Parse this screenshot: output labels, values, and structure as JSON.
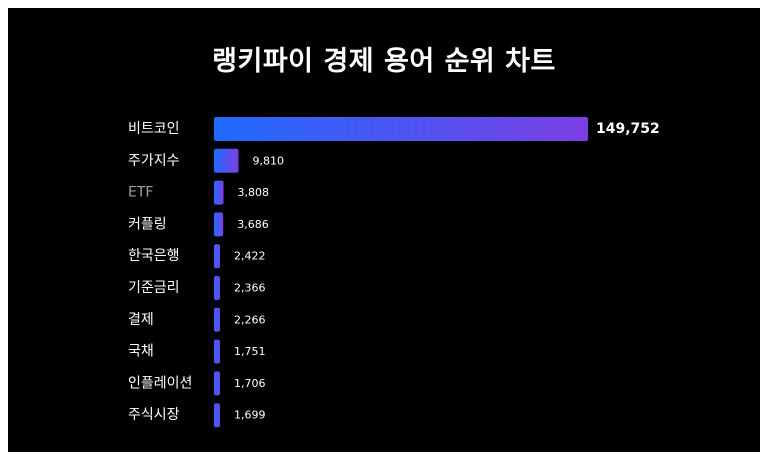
{
  "title": "랭키파이 경제 용어 순위 차트",
  "colors": {
    "background": "#000000",
    "text": "#ffffff",
    "bar_start": "#1f6bff",
    "bar_end": "#7b3fe4",
    "etf_label": "#a0a0a0"
  },
  "chart_data": {
    "type": "bar",
    "orientation": "horizontal",
    "title": "랭키파이 경제 용어 순위 차트",
    "categories": [
      "비트코인",
      "주가지수",
      "ETF",
      "커플링",
      "한국은행",
      "기준금리",
      "결제",
      "국채",
      "인플레이션",
      "주식시장"
    ],
    "values": [
      149752,
      9810,
      3808,
      3686,
      2422,
      2366,
      2266,
      1751,
      1706,
      1699
    ],
    "value_labels": [
      "149,752",
      "9,810",
      "3,808",
      "3,686",
      "2,422",
      "2,366",
      "2,266",
      "1,751",
      "1,706",
      "1,699"
    ],
    "xlim": [
      0,
      149752
    ],
    "grid": false,
    "legend": "none"
  }
}
